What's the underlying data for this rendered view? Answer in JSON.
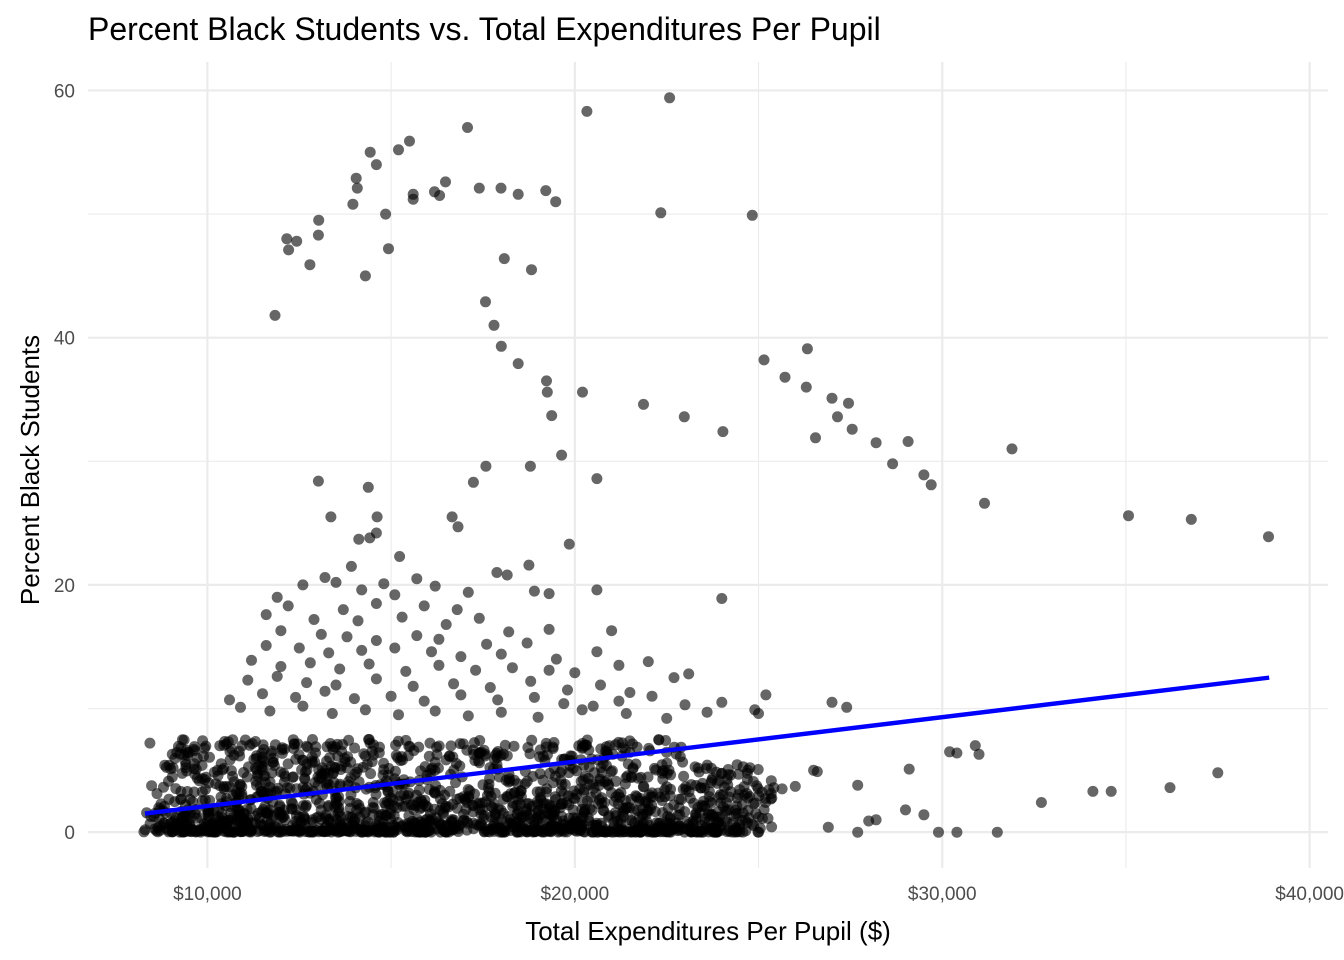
{
  "chart_data": {
    "type": "scatter",
    "title": "Percent Black Students vs. Total Expenditures Per Pupil",
    "xlabel": "Total Expenditures Per Pupil ($)",
    "ylabel": "Percent Black Students",
    "xlim": [
      6750,
      40500
    ],
    "ylim": [
      -2.9,
      62.3
    ],
    "x_ticks": [
      {
        "value": 10000,
        "label": "$10,000"
      },
      {
        "value": 20000,
        "label": "$20,000"
      },
      {
        "value": 30000,
        "label": "$30,000"
      },
      {
        "value": 40000,
        "label": "$40,000"
      }
    ],
    "y_ticks": [
      {
        "value": 0,
        "label": "0"
      },
      {
        "value": 20,
        "label": "20"
      },
      {
        "value": 40,
        "label": "40"
      },
      {
        "value": 60,
        "label": "60"
      }
    ],
    "grid": true,
    "trend_line": {
      "color": "#0000ff",
      "x": [
        8300,
        38900
      ],
      "y": [
        1.5,
        12.5
      ]
    },
    "points": [
      [
        22580,
        59.4
      ],
      [
        20330,
        58.3
      ],
      [
        17080,
        57.0
      ],
      [
        15500,
        55.9
      ],
      [
        15200,
        55.2
      ],
      [
        14430,
        55.0
      ],
      [
        14600,
        54.0
      ],
      [
        14050,
        52.9
      ],
      [
        16480,
        52.6
      ],
      [
        14080,
        52.1
      ],
      [
        17400,
        52.1
      ],
      [
        17990,
        52.1
      ],
      [
        19210,
        51.9
      ],
      [
        16180,
        51.8
      ],
      [
        15600,
        51.6
      ],
      [
        18460,
        51.6
      ],
      [
        16320,
        51.5
      ],
      [
        15600,
        51.2
      ],
      [
        19480,
        51.0
      ],
      [
        13960,
        50.8
      ],
      [
        22340,
        50.1
      ],
      [
        14850,
        50.0
      ],
      [
        24830,
        49.9
      ],
      [
        13030,
        49.5
      ],
      [
        12160,
        48.0
      ],
      [
        12430,
        47.8
      ],
      [
        13020,
        48.3
      ],
      [
        12210,
        47.1
      ],
      [
        14930,
        47.2
      ],
      [
        12790,
        45.9
      ],
      [
        18080,
        46.4
      ],
      [
        18820,
        45.5
      ],
      [
        14300,
        45.0
      ],
      [
        17570,
        42.9
      ],
      [
        11840,
        41.8
      ],
      [
        17800,
        41.0
      ],
      [
        18000,
        39.3
      ],
      [
        18460,
        37.9
      ],
      [
        26330,
        39.1
      ],
      [
        25150,
        38.2
      ],
      [
        25720,
        36.8
      ],
      [
        19230,
        36.5
      ],
      [
        26300,
        36.0
      ],
      [
        20210,
        35.6
      ],
      [
        19250,
        35.6
      ],
      [
        21870,
        34.6
      ],
      [
        27000,
        35.1
      ],
      [
        27450,
        34.7
      ],
      [
        19370,
        33.7
      ],
      [
        22980,
        33.6
      ],
      [
        27150,
        33.6
      ],
      [
        27550,
        32.6
      ],
      [
        24030,
        32.4
      ],
      [
        26550,
        31.9
      ],
      [
        28200,
        31.5
      ],
      [
        29070,
        31.6
      ],
      [
        31900,
        31.0
      ],
      [
        19640,
        30.5
      ],
      [
        28650,
        29.8
      ],
      [
        17580,
        29.6
      ],
      [
        18790,
        29.6
      ],
      [
        29500,
        28.9
      ],
      [
        20600,
        28.6
      ],
      [
        13020,
        28.4
      ],
      [
        17240,
        28.3
      ],
      [
        29700,
        28.1
      ],
      [
        14380,
        27.9
      ],
      [
        31150,
        26.6
      ],
      [
        13360,
        25.5
      ],
      [
        14620,
        25.5
      ],
      [
        16660,
        25.5
      ],
      [
        35070,
        25.6
      ],
      [
        36780,
        25.3
      ],
      [
        16820,
        24.7
      ],
      [
        14600,
        24.2
      ],
      [
        14420,
        23.8
      ],
      [
        14120,
        23.7
      ],
      [
        38880,
        23.9
      ],
      [
        19850,
        23.3
      ],
      [
        15230,
        22.3
      ],
      [
        13920,
        21.5
      ],
      [
        17880,
        21.0
      ],
      [
        18160,
        20.8
      ],
      [
        18750,
        21.6
      ],
      [
        13200,
        20.6
      ],
      [
        13500,
        20.2
      ],
      [
        14800,
        20.1
      ],
      [
        15700,
        20.5
      ],
      [
        16200,
        19.9
      ],
      [
        12600,
        20.0
      ],
      [
        14200,
        19.6
      ],
      [
        15100,
        19.2
      ],
      [
        17100,
        19.4
      ],
      [
        18900,
        19.5
      ],
      [
        20600,
        19.6
      ],
      [
        24000,
        18.9
      ],
      [
        11900,
        19.0
      ],
      [
        12200,
        18.3
      ],
      [
        13700,
        18.0
      ],
      [
        14600,
        18.5
      ],
      [
        15900,
        18.3
      ],
      [
        16800,
        18.0
      ],
      [
        19300,
        19.3
      ],
      [
        11600,
        17.6
      ],
      [
        12900,
        17.2
      ],
      [
        14100,
        17.1
      ],
      [
        15300,
        17.4
      ],
      [
        16500,
        16.8
      ],
      [
        17400,
        17.3
      ],
      [
        18200,
        16.2
      ],
      [
        19300,
        16.4
      ],
      [
        21000,
        16.3
      ],
      [
        12000,
        16.3
      ],
      [
        13100,
        16.0
      ],
      [
        13800,
        15.8
      ],
      [
        14600,
        15.5
      ],
      [
        15700,
        15.9
      ],
      [
        16300,
        15.6
      ],
      [
        17600,
        15.2
      ],
      [
        18700,
        15.3
      ],
      [
        11600,
        15.1
      ],
      [
        12500,
        14.9
      ],
      [
        13300,
        14.5
      ],
      [
        14200,
        14.7
      ],
      [
        15100,
        14.9
      ],
      [
        16100,
        14.6
      ],
      [
        16900,
        14.2
      ],
      [
        18000,
        14.4
      ],
      [
        19500,
        14.0
      ],
      [
        20600,
        14.6
      ],
      [
        21200,
        13.5
      ],
      [
        11200,
        13.9
      ],
      [
        12000,
        13.4
      ],
      [
        12800,
        13.7
      ],
      [
        13600,
        13.2
      ],
      [
        14400,
        13.6
      ],
      [
        15400,
        13.0
      ],
      [
        16300,
        13.5
      ],
      [
        17300,
        13.1
      ],
      [
        18300,
        13.3
      ],
      [
        19300,
        13.1
      ],
      [
        20000,
        12.9
      ],
      [
        22000,
        13.8
      ],
      [
        23100,
        12.8
      ],
      [
        11100,
        12.3
      ],
      [
        11900,
        12.6
      ],
      [
        12700,
        12.1
      ],
      [
        13500,
        11.9
      ],
      [
        14600,
        12.4
      ],
      [
        15600,
        11.8
      ],
      [
        16700,
        12.0
      ],
      [
        17700,
        11.7
      ],
      [
        18800,
        12.2
      ],
      [
        19800,
        11.5
      ],
      [
        20700,
        11.9
      ],
      [
        21500,
        11.3
      ],
      [
        22700,
        12.5
      ],
      [
        10600,
        10.7
      ],
      [
        11500,
        11.2
      ],
      [
        12400,
        10.9
      ],
      [
        13200,
        11.4
      ],
      [
        14000,
        10.8
      ],
      [
        15000,
        11.0
      ],
      [
        15900,
        10.6
      ],
      [
        16900,
        11.1
      ],
      [
        17900,
        10.7
      ],
      [
        18900,
        10.9
      ],
      [
        19700,
        10.4
      ],
      [
        20500,
        10.2
      ],
      [
        21200,
        10.6
      ],
      [
        22100,
        11.0
      ],
      [
        23000,
        10.3
      ],
      [
        24000,
        10.5
      ],
      [
        25200,
        11.1
      ],
      [
        27000,
        10.5
      ],
      [
        27400,
        10.1
      ],
      [
        10900,
        10.1
      ],
      [
        11700,
        9.8
      ],
      [
        12600,
        10.2
      ],
      [
        13400,
        9.6
      ],
      [
        14300,
        9.9
      ],
      [
        15200,
        9.5
      ],
      [
        16200,
        9.8
      ],
      [
        17100,
        9.4
      ],
      [
        18000,
        9.7
      ],
      [
        19000,
        9.3
      ],
      [
        20200,
        9.9
      ],
      [
        21400,
        9.6
      ],
      [
        22500,
        9.2
      ],
      [
        23600,
        9.7
      ],
      [
        24900,
        9.9
      ],
      [
        25000,
        9.6
      ]
    ]
  }
}
